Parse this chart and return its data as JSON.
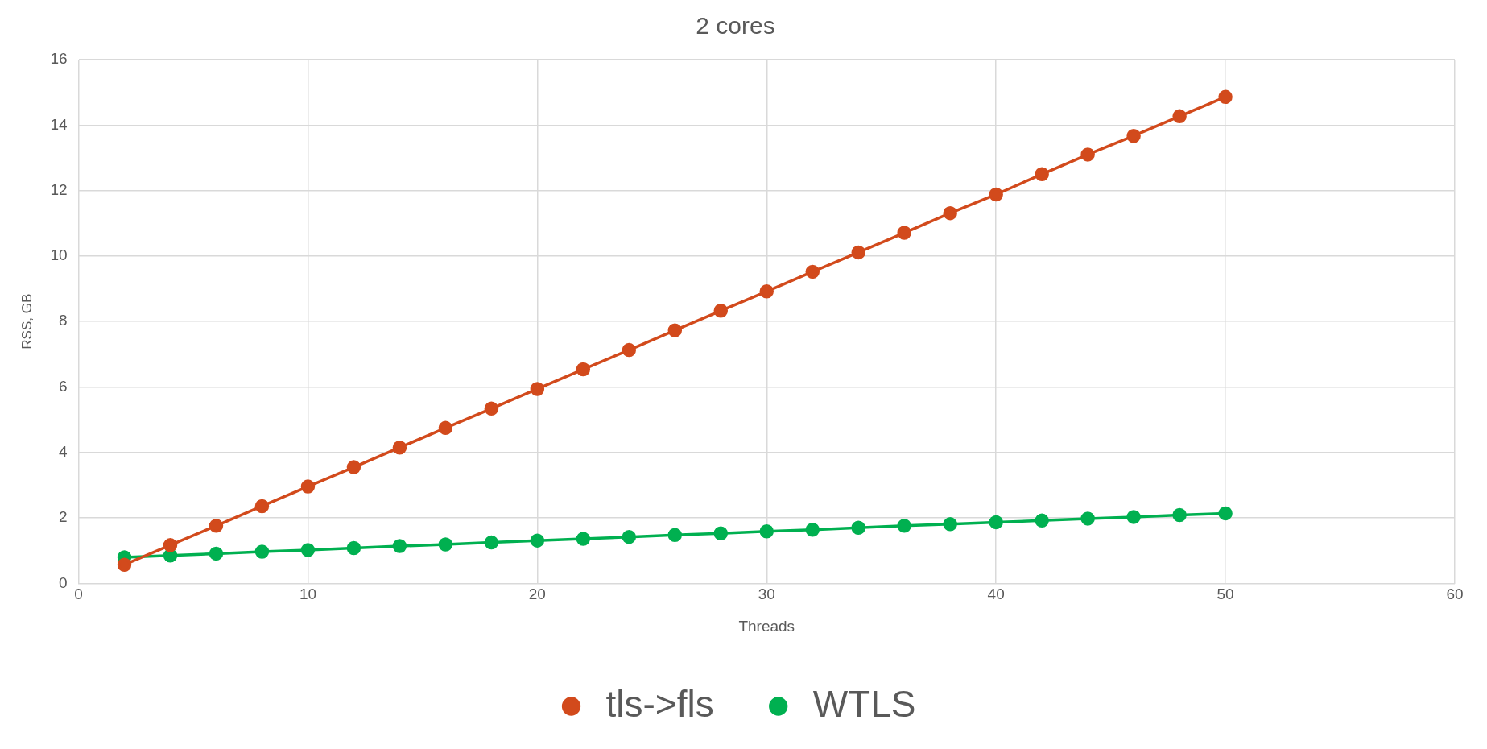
{
  "chart_data": {
    "type": "line",
    "title": "2 cores",
    "xlabel": "Threads",
    "ylabel": "RSS, GB",
    "x": [
      2,
      4,
      6,
      8,
      10,
      12,
      14,
      16,
      18,
      20,
      22,
      24,
      26,
      28,
      30,
      32,
      34,
      36,
      38,
      40,
      42,
      44,
      46,
      48,
      50
    ],
    "series": [
      {
        "name": "tls->fls",
        "color": "#d24a1c",
        "values": [
          0.57,
          1.17,
          1.76,
          2.36,
          2.96,
          3.55,
          4.15,
          4.75,
          5.34,
          5.94,
          6.54,
          7.13,
          7.73,
          8.33,
          8.92,
          9.52,
          10.11,
          10.71,
          11.31,
          11.88,
          12.5,
          13.1,
          13.67,
          14.27,
          14.86
        ]
      },
      {
        "name": "WTLS",
        "color": "#00b050",
        "values": [
          0.8,
          0.85,
          0.91,
          0.97,
          1.02,
          1.08,
          1.14,
          1.19,
          1.25,
          1.31,
          1.36,
          1.42,
          1.48,
          1.53,
          1.59,
          1.64,
          1.7,
          1.76,
          1.81,
          1.87,
          1.92,
          1.98,
          2.03,
          2.09,
          2.14
        ]
      }
    ],
    "xlim": [
      0,
      60
    ],
    "xticks": [
      0,
      10,
      20,
      30,
      40,
      50,
      60
    ],
    "ylim": [
      0,
      16
    ],
    "yticks": [
      0,
      2,
      4,
      6,
      8,
      10,
      12,
      14,
      16
    ],
    "grid": true,
    "legend": "bottom",
    "marker": "circle",
    "line_style": "solid"
  }
}
